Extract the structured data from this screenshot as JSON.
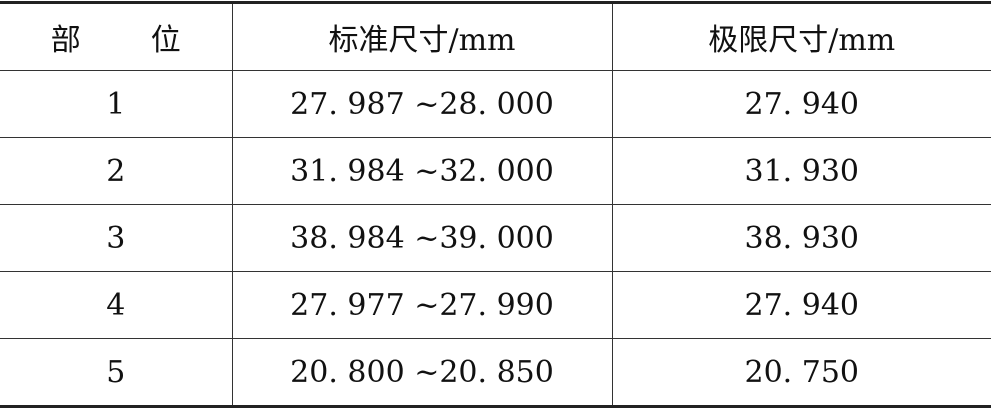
{
  "table": {
    "headers": {
      "part": [
        "部",
        "位"
      ],
      "standard": "标准尺寸/mm",
      "limit": "极限尺寸/mm"
    },
    "rows": [
      {
        "part": "1",
        "standard": "27. 987 ~28. 000",
        "limit": "27. 940"
      },
      {
        "part": "2",
        "standard": "31. 984 ~32. 000",
        "limit": "31. 930"
      },
      {
        "part": "3",
        "standard": "38. 984 ~39. 000",
        "limit": "38. 930"
      },
      {
        "part": "4",
        "standard": "27. 977 ~27. 990",
        "limit": "27. 940"
      },
      {
        "part": "5",
        "standard": "20. 800 ~20. 850",
        "limit": "20. 750"
      }
    ]
  }
}
